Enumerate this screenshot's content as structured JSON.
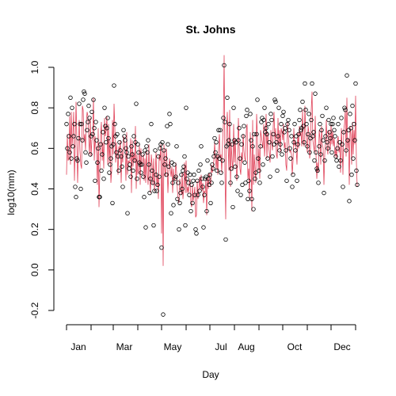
{
  "chart_data": {
    "type": "scatter",
    "title": "St. Johns",
    "xlabel": "Day",
    "ylabel": "log10(mm)",
    "xlim": [
      1,
      366
    ],
    "ylim": [
      -0.2,
      1.0
    ],
    "y_ticks": [
      "-0.2",
      "0.0",
      "0.2",
      "0.4",
      "0.6",
      "0.8",
      "1.0"
    ],
    "y_tick_values": [
      -0.2,
      0.0,
      0.2,
      0.4,
      0.6,
      0.8,
      1.0
    ],
    "month_tick_days": [
      1,
      32,
      60,
      91,
      121,
      152,
      182,
      213,
      244,
      274,
      305,
      335,
      366
    ],
    "x_labels": [
      "Jan",
      "Mar",
      "May",
      "Jul",
      "Aug",
      "Oct",
      "Dec"
    ],
    "x_label_days": [
      16,
      74,
      135,
      196,
      228,
      289,
      349
    ],
    "series": [
      {
        "kind": "points",
        "color": "#000000",
        "values": [
          0.72,
          0.6,
          0.77,
          0.66,
          0.58,
          0.85,
          0.55,
          0.8,
          0.61,
          0.66,
          0.72,
          0.41,
          0.36,
          0.55,
          0.54,
          0.65,
          0.82,
          0.72,
          0.4,
          0.72,
          0.64,
          0.84,
          0.88,
          0.87,
          0.58,
          0.53,
          0.69,
          0.73,
          0.81,
          0.75,
          0.57,
          0.66,
          0.78,
          0.67,
          0.84,
          0.7,
          0.44,
          0.73,
          0.64,
          0.53,
          0.6,
          0.36,
          0.36,
          0.62,
          0.49,
          0.57,
          0.68,
          0.45,
          0.8,
          0.71,
          0.63,
          0.7,
          0.75,
          0.65,
          0.48,
          0.52,
          0.55,
          0.61,
          0.33,
          0.62,
          0.91,
          0.72,
          0.66,
          0.58,
          0.67,
          0.56,
          0.49,
          0.63,
          0.59,
          0.56,
          0.51,
          0.41,
          0.69,
          0.66,
          0.64,
          0.6,
          0.58,
          0.28,
          0.56,
          0.5,
          0.52,
          0.46,
          0.61,
          0.57,
          0.49,
          0.66,
          0.54,
          0.63,
          0.82,
          0.45,
          0.62,
          0.58,
          0.53,
          0.52,
          0.48,
          0.52,
          0.57,
          0.46,
          0.36,
          0.59,
          0.21,
          0.61,
          0.58,
          0.64,
          0.52,
          0.38,
          0.45,
          0.72,
          0.49,
          0.43,
          0.22,
          0.39,
          0.59,
          0.47,
          0.39,
          0.42,
          0.56,
          0.46,
          0.6,
          0.62,
          0.11,
          0.63,
          -0.22,
          0.59,
          0.52,
          0.55,
          0.47,
          0.71,
          0.62,
          0.51,
          0.77,
          0.72,
          0.28,
          0.53,
          0.43,
          0.32,
          0.52,
          0.45,
          0.46,
          0.61,
          0.35,
          0.43,
          0.2,
          0.33,
          0.38,
          0.47,
          0.4,
          0.49,
          0.51,
          0.56,
          0.22,
          0.8,
          0.45,
          0.48,
          0.43,
          0.37,
          0.47,
          0.29,
          0.42,
          0.33,
          0.44,
          0.47,
          0.37,
          0.2,
          0.18,
          0.44,
          0.37,
          0.49,
          0.39,
          0.52,
          0.61,
          0.45,
          0.41,
          0.21,
          0.37,
          0.45,
          0.46,
          0.29,
          0.54,
          0.45,
          0.42,
          0.47,
          0.33,
          0.43,
          0.52,
          0.5,
          0.56,
          0.65,
          0.58,
          0.63,
          0.49,
          0.56,
          0.69,
          0.55,
          0.69,
          0.48,
          0.43,
          0.54,
          0.75,
          1.01,
          0.73,
          0.15,
          0.61,
          0.85,
          0.62,
          0.64,
          0.72,
          0.43,
          0.5,
          0.62,
          0.31,
          0.8,
          0.64,
          0.51,
          0.63,
          0.46,
          0.39,
          0.64,
          0.7,
          0.55,
          0.37,
          0.62,
          0.42,
          0.66,
          0.71,
          0.53,
          0.43,
          0.76,
          0.79,
          0.35,
          0.44,
          0.39,
          0.77,
          0.64,
          0.35,
          0.61,
          0.3,
          0.67,
          0.45,
          0.48,
          0.67,
          0.84,
          0.55,
          0.49,
          0.43,
          0.61,
          0.73,
          0.75,
          0.52,
          0.74,
          0.8,
          0.68,
          0.7,
          0.67,
          0.55,
          0.72,
          0.63,
          0.46,
          0.77,
          0.74,
          0.56,
          0.67,
          0.62,
          0.84,
          0.83,
          0.63,
          0.49,
          0.66,
          0.8,
          0.59,
          0.62,
          0.72,
          0.57,
          0.76,
          0.78,
          0.68,
          0.7,
          0.59,
          0.44,
          0.72,
          0.74,
          0.69,
          0.6,
          0.55,
          0.66,
          0.41,
          0.47,
          0.63,
          0.72,
          0.59,
          0.66,
          0.44,
          0.62,
          0.67,
          0.74,
          0.79,
          0.69,
          0.7,
          0.83,
          0.71,
          0.63,
          0.92,
          0.79,
          0.72,
          0.61,
          0.67,
          0.77,
          0.58,
          0.65,
          0.74,
          0.92,
          0.66,
          0.68,
          0.54,
          0.87,
          0.58,
          0.5,
          0.49,
          0.43,
          0.61,
          0.72,
          0.57,
          0.69,
          0.76,
          0.64,
          0.38,
          0.54,
          0.66,
          0.8,
          0.63,
          0.6,
          0.74,
          0.68,
          0.65,
          0.72,
          0.58,
          0.72,
          0.75,
          0.69,
          0.66,
          0.56,
          0.54,
          0.6,
          0.72,
          0.51,
          0.63,
          0.54,
          0.75,
          0.62,
          0.41,
          0.68,
          0.8,
          0.79,
          0.59,
          0.96,
          0.64,
          0.69,
          0.34,
          0.77,
          0.7,
          0.47,
          0.81,
          0.55,
          0.72,
          0.64,
          0.92,
          0.49,
          0.42
        ]
      },
      {
        "kind": "line",
        "color": "#e0435a",
        "values": [
          0.47,
          0.67,
          0.54,
          0.55,
          0.76,
          0.52,
          0.78,
          0.61,
          0.67,
          0.78,
          0.44,
          0.61,
          0.83,
          0.65,
          0.43,
          0.6,
          0.74,
          0.59,
          0.52,
          0.5,
          0.81,
          0.79,
          0.63,
          0.67,
          0.59,
          0.73,
          0.78,
          0.76,
          0.65,
          0.57,
          0.75,
          0.56,
          0.64,
          0.65,
          0.85,
          0.54,
          0.66,
          0.61,
          0.57,
          0.42,
          0.7,
          0.31,
          0.48,
          0.66,
          0.73,
          0.54,
          0.63,
          0.5,
          0.75,
          0.66,
          0.69,
          0.76,
          0.52,
          0.72,
          0.53,
          0.64,
          0.43,
          0.49,
          0.74,
          0.57,
          0.82,
          0.7,
          0.53,
          0.63,
          0.57,
          0.47,
          0.61,
          0.58,
          0.64,
          0.43,
          0.59,
          0.53,
          0.66,
          0.63,
          0.58,
          0.44,
          0.68,
          0.47,
          0.54,
          0.53,
          0.54,
          0.65,
          0.38,
          0.64,
          0.51,
          0.58,
          0.53,
          0.71,
          0.4,
          0.57,
          0.47,
          0.5,
          0.62,
          0.42,
          0.6,
          0.51,
          0.53,
          0.57,
          0.44,
          0.55,
          0.43,
          0.59,
          0.48,
          0.42,
          0.62,
          0.45,
          0.38,
          0.57,
          0.52,
          0.42,
          0.55,
          0.39,
          0.47,
          0.58,
          0.41,
          0.47,
          0.35,
          0.57,
          0.54,
          0.62,
          0.18,
          0.59,
          0.02,
          0.62,
          0.5,
          0.46,
          0.6,
          0.53,
          0.38,
          0.48,
          0.55,
          0.5,
          0.46,
          0.51,
          0.38,
          0.5,
          0.44,
          0.45,
          0.53,
          0.48,
          0.39,
          0.35,
          0.33,
          0.45,
          0.42,
          0.37,
          0.48,
          0.35,
          0.41,
          0.53,
          0.38,
          0.54,
          0.38,
          0.41,
          0.38,
          0.43,
          0.45,
          0.33,
          0.31,
          0.42,
          0.34,
          0.37,
          0.41,
          0.26,
          0.27,
          0.44,
          0.35,
          0.39,
          0.46,
          0.4,
          0.47,
          0.39,
          0.43,
          0.33,
          0.39,
          0.38,
          0.45,
          0.27,
          0.46,
          0.4,
          0.48,
          0.45,
          0.41,
          0.52,
          0.48,
          0.5,
          0.54,
          0.63,
          0.55,
          0.5,
          0.57,
          0.47,
          0.6,
          0.67,
          0.55,
          0.57,
          0.48,
          0.63,
          0.71,
          1.06,
          0.49,
          0.25,
          0.69,
          0.78,
          0.62,
          0.49,
          0.79,
          0.41,
          0.63,
          0.54,
          0.49,
          0.72,
          0.53,
          0.65,
          0.52,
          0.44,
          0.52,
          0.75,
          0.61,
          0.5,
          0.47,
          0.58,
          0.53,
          0.67,
          0.59,
          0.55,
          0.54,
          0.69,
          0.72,
          0.45,
          0.5,
          0.35,
          0.68,
          0.55,
          0.29,
          0.74,
          0.42,
          0.57,
          0.5,
          0.43,
          0.77,
          0.66,
          0.49,
          0.6,
          0.45,
          0.69,
          0.66,
          0.63,
          0.6,
          0.72,
          0.56,
          0.64,
          0.77,
          0.55,
          0.68,
          0.62,
          0.58,
          0.53,
          0.69,
          0.63,
          0.59,
          0.71,
          0.78,
          0.64,
          0.7,
          0.57,
          0.55,
          0.75,
          0.62,
          0.69,
          0.58,
          0.7,
          0.68,
          0.64,
          0.72,
          0.6,
          0.63,
          0.52,
          0.49,
          0.73,
          0.66,
          0.61,
          0.58,
          0.59,
          0.57,
          0.47,
          0.54,
          0.7,
          0.61,
          0.64,
          0.59,
          0.52,
          0.68,
          0.6,
          0.71,
          0.66,
          0.68,
          0.61,
          0.79,
          0.64,
          0.61,
          0.81,
          0.68,
          0.64,
          0.58,
          0.71,
          0.68,
          0.55,
          0.6,
          0.79,
          0.88,
          0.64,
          0.61,
          0.58,
          0.76,
          0.57,
          0.45,
          0.53,
          0.48,
          0.69,
          0.65,
          0.52,
          0.71,
          0.62,
          0.6,
          0.42,
          0.57,
          0.63,
          0.74,
          0.61,
          0.57,
          0.69,
          0.66,
          0.59,
          0.72,
          0.62,
          0.69,
          0.61,
          0.65,
          0.56,
          0.6,
          0.55,
          0.64,
          0.66,
          0.58,
          0.61,
          0.48,
          0.7,
          0.6,
          0.47,
          0.69,
          0.72,
          0.79,
          0.56,
          0.85,
          0.6,
          0.65,
          0.42,
          0.71,
          0.67,
          0.52,
          0.73,
          0.57,
          0.69,
          0.62,
          0.86,
          0.53,
          0.41
        ]
      }
    ]
  }
}
